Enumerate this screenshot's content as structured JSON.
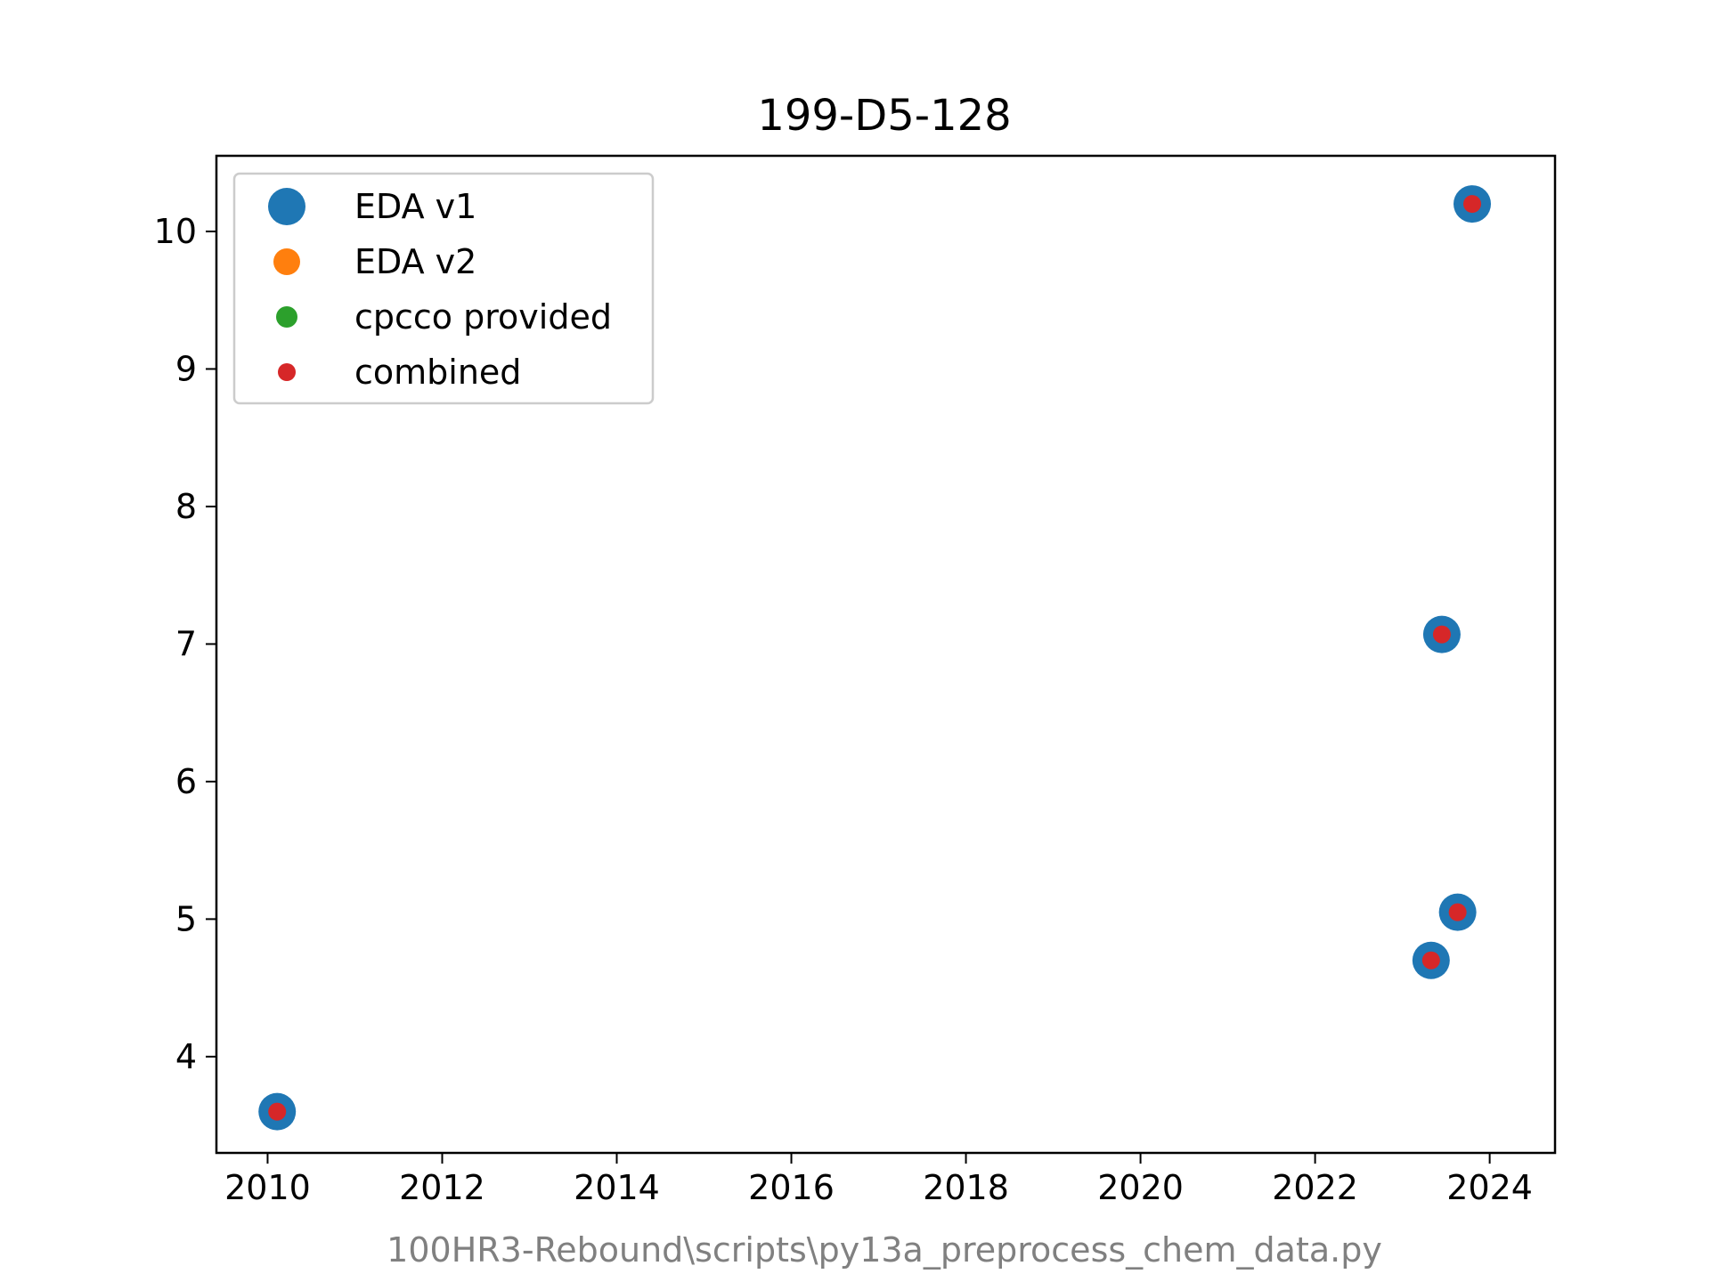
{
  "chart_data": {
    "type": "scatter",
    "title": "199-D5-128",
    "xlabel": "",
    "ylabel": "",
    "footer": "100HR3-Rebound\\scripts\\py13a_preprocess_chem_data.py",
    "xlim": [
      "2009-06-01",
      "2024-10-01"
    ],
    "ylim": [
      3.3,
      10.55
    ],
    "x_ticks": [
      "2010",
      "2012",
      "2014",
      "2016",
      "2018",
      "2020",
      "2022",
      "2024"
    ],
    "y_ticks": [
      "4",
      "5",
      "6",
      "7",
      "8",
      "9",
      "10"
    ],
    "grid": false,
    "legend_position": "upper-left",
    "series": [
      {
        "name": "EDA v1",
        "color": "#1f77b4",
        "points": [
          {
            "x": "2010-02-10",
            "y": 3.6
          },
          {
            "x": "2023-05-01",
            "y": 4.7
          },
          {
            "x": "2023-06-15",
            "y": 7.07
          },
          {
            "x": "2023-08-20",
            "y": 5.05
          },
          {
            "x": "2023-10-20",
            "y": 10.2
          }
        ]
      },
      {
        "name": "EDA v2",
        "color": "#ff7f0e",
        "points": []
      },
      {
        "name": "cpcco provided",
        "color": "#2ca02c",
        "points": []
      },
      {
        "name": "combined",
        "color": "#d62728",
        "points": [
          {
            "x": "2010-02-10",
            "y": 3.6
          },
          {
            "x": "2023-05-01",
            "y": 4.7
          },
          {
            "x": "2023-06-15",
            "y": 7.07
          },
          {
            "x": "2023-08-20",
            "y": 5.05
          },
          {
            "x": "2023-10-20",
            "y": 10.2
          }
        ]
      }
    ]
  }
}
